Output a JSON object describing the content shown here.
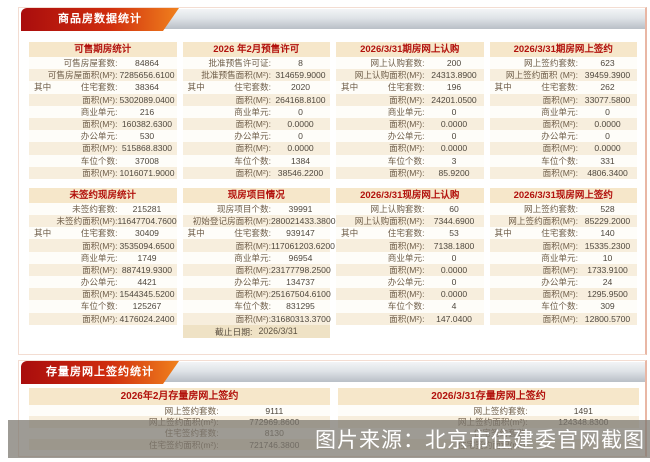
{
  "colors": {
    "ribbon_red": "#a90d0d",
    "ribbon_orange": "#f0811d",
    "panel_header_bg": "#f6e7ca",
    "header_text_red": "#b2120d",
    "row_stripe": "#f7eedd"
  },
  "sections": {
    "commodity_title": "商品房数据统计",
    "stock_title": "存量房网上签约统计"
  },
  "top_panels": [
    {
      "title": "可售期房统计",
      "rows": [
        {
          "label": "可售房屋套数:",
          "value": "84864"
        },
        {
          "label": "可售房屋面积(M²):",
          "value": "7285656.6100"
        },
        {
          "prefix": "其中",
          "label": "住宅套数:",
          "value": "38364"
        },
        {
          "label": "面积(M²):",
          "value": "5302089.0400"
        },
        {
          "label": "商业单元:",
          "value": "216"
        },
        {
          "label": "面积(M²):",
          "value": "160382.6300"
        },
        {
          "label": "办公单元:",
          "value": "530"
        },
        {
          "label": "面积(M²):",
          "value": "515868.8300"
        },
        {
          "label": "车位个数:",
          "value": "37008"
        },
        {
          "label": "面积(M²):",
          "value": "1016071.9000"
        }
      ]
    },
    {
      "title": "2026 年2月预售许可",
      "rows": [
        {
          "label": "批准预售许可证:",
          "value": "8"
        },
        {
          "label": "批准预售面积(M²):",
          "value": "314659.9000"
        },
        {
          "prefix": "其中",
          "label": "住宅套数:",
          "value": "2020"
        },
        {
          "label": "面积(M²):",
          "value": "264168.8100"
        },
        {
          "label": "商业单元:",
          "value": "0"
        },
        {
          "label": "面积(M²):",
          "value": "0.0000"
        },
        {
          "label": "办公单元:",
          "value": "0"
        },
        {
          "label": "面积(M²):",
          "value": "0.0000"
        },
        {
          "label": "车位个数:",
          "value": "1384"
        },
        {
          "label": "面积(M²):",
          "value": "38546.2200"
        }
      ]
    },
    {
      "title": "2026/3/31期房网上认购",
      "rows": [
        {
          "label": "网上认购套数:",
          "value": "200"
        },
        {
          "label": "网上认购面积(M²):",
          "value": "24313.8900"
        },
        {
          "prefix": "其中",
          "label": "住宅套数:",
          "value": "196"
        },
        {
          "label": "面积(M²):",
          "value": "24201.0500"
        },
        {
          "label": "商业单元:",
          "value": "0"
        },
        {
          "label": "面积(M²):",
          "value": "0.0000"
        },
        {
          "label": "办公单元:",
          "value": "0"
        },
        {
          "label": "面积(M²):",
          "value": "0.0000"
        },
        {
          "label": "车位个数:",
          "value": "3"
        },
        {
          "label": "面积(M²):",
          "value": "85.9200"
        }
      ]
    },
    {
      "title": "2026/3/31期房网上签约",
      "rows": [
        {
          "label": "网上签约套数:",
          "value": "623"
        },
        {
          "label": "网上签约面积 (M²):",
          "value": "39459.3900"
        },
        {
          "prefix": "其中",
          "label": "住宅套数:",
          "value": "262"
        },
        {
          "label": "面积(M²):",
          "value": "33077.5800"
        },
        {
          "label": "商业单元:",
          "value": "0"
        },
        {
          "label": "面积(M²):",
          "value": "0.0000"
        },
        {
          "label": "办公单元:",
          "value": "0"
        },
        {
          "label": "面积(M²):",
          "value": "0.0000"
        },
        {
          "label": "车位个数:",
          "value": "331"
        },
        {
          "label": "面积(M²):",
          "value": "4806.3400"
        }
      ]
    },
    {
      "title": "未签约现房统计",
      "rows": [
        {
          "label": "未签约套数:",
          "value": "215281"
        },
        {
          "label": "未签约面积(M²):",
          "value": "11647704.7600"
        },
        {
          "prefix": "其中",
          "label": "住宅套数:",
          "value": "30409"
        },
        {
          "label": "面积(M²):",
          "value": "3535094.6500"
        },
        {
          "label": "商业单元:",
          "value": "1749"
        },
        {
          "label": "面积(M²):",
          "value": "887419.9300"
        },
        {
          "label": "办公单元:",
          "value": "4421"
        },
        {
          "label": "面积(M²):",
          "value": "1544345.5200"
        },
        {
          "label": "车位个数:",
          "value": "125267"
        },
        {
          "label": "面积(M²):",
          "value": "4176024.2400"
        }
      ]
    },
    {
      "title": "现房项目情况",
      "rows": [
        {
          "label": "现房项目个数:",
          "value": "39991"
        },
        {
          "label": "初始登记房面积(M²):",
          "value": "280021433.3800"
        },
        {
          "prefix": "其中",
          "label": "住宅套数:",
          "value": "939147"
        },
        {
          "label": "面积(M²):",
          "value": "117061203.6200"
        },
        {
          "label": "商业单元:",
          "value": "96954"
        },
        {
          "label": "面积(M²):",
          "value": "23177798.2500"
        },
        {
          "label": "办公单元:",
          "value": "134737"
        },
        {
          "label": "面积(M²):",
          "value": "25167504.6100"
        },
        {
          "label": "车位个数:",
          "value": "831295"
        },
        {
          "label": "面积(M²):",
          "value": "31680313.3700"
        }
      ],
      "footer": {
        "label": "截止日期:",
        "value": "2026/3/31"
      }
    },
    {
      "title": "2026/3/31现房网上认购",
      "rows": [
        {
          "label": "网上认购套数:",
          "value": "60"
        },
        {
          "label": "网上认购面积(M²):",
          "value": "7344.6900"
        },
        {
          "prefix": "其中",
          "label": "住宅套数:",
          "value": "53"
        },
        {
          "label": "面积(M²):",
          "value": "7138.1800"
        },
        {
          "label": "商业单元:",
          "value": "0"
        },
        {
          "label": "面积(M²):",
          "value": "0.0000"
        },
        {
          "label": "办公单元:",
          "value": "0"
        },
        {
          "label": "面积(M²):",
          "value": "0.0000"
        },
        {
          "label": "车位个数:",
          "value": "4"
        },
        {
          "label": "面积(M²):",
          "value": "147.0400"
        }
      ]
    },
    {
      "title": "2026/3/31现房网上签约",
      "rows": [
        {
          "label": "网上签约套数:",
          "value": "528"
        },
        {
          "label": "网上签约面积(M²):",
          "value": "85229.2000"
        },
        {
          "prefix": "其中",
          "label": "住宅套数:",
          "value": "140"
        },
        {
          "label": "面积(M²):",
          "value": "15335.2300"
        },
        {
          "label": "商业单元:",
          "value": "10"
        },
        {
          "label": "面积(M²):",
          "value": "1733.9100"
        },
        {
          "label": "办公单元:",
          "value": "24"
        },
        {
          "label": "面积(M²):",
          "value": "1295.9500"
        },
        {
          "label": "车位个数:",
          "value": "309"
        },
        {
          "label": "面积(M²):",
          "value": "12800.5700"
        }
      ]
    }
  ],
  "bottom": {
    "panels": [
      {
        "title": "2026年2月存量房网上签约",
        "rows": [
          {
            "label": "网上签约套数:",
            "value": "9111"
          },
          {
            "label": "网上签约面积(m²):",
            "value": "772969.8600"
          },
          {
            "label": "住宅签约套数:",
            "value": "8130"
          },
          {
            "label": "住宅签约面积(m²):",
            "value": "721746.3800"
          }
        ]
      },
      {
        "title": "2026/3/31存量房网上签约",
        "rows": [
          {
            "label": "网上签约套数:",
            "value": "1491"
          },
          {
            "label": "网上签约面积(m²):",
            "value": "124348.8300"
          },
          {
            "label": "住宅签约套数:",
            "value": ""
          },
          {
            "label": "住宅签约面积(m²):",
            "value": ""
          }
        ]
      }
    ]
  },
  "watermark": "图片来源：北京市住建委官网截图"
}
